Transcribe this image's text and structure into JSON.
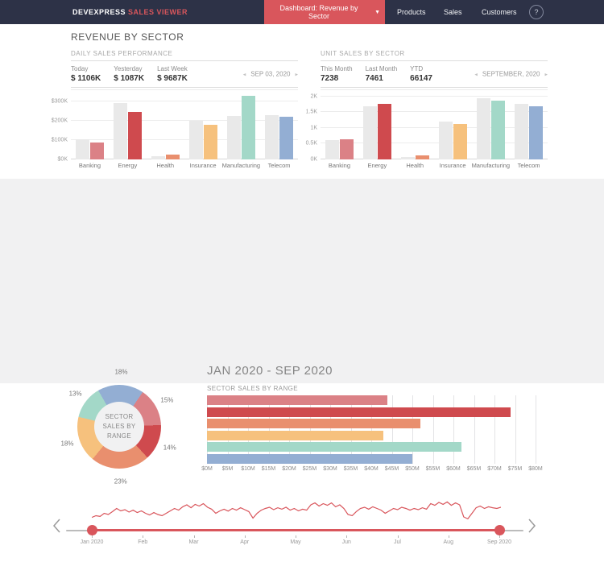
{
  "nav": {
    "brand_primary": "DEVEXPRESS",
    "brand_secondary": "SALES VIEWER",
    "dashboard_button": "Dashboard: Revenue by Sector",
    "items": [
      {
        "label": "Products"
      },
      {
        "label": "Sales"
      },
      {
        "label": "Customers"
      }
    ],
    "help_label": "?"
  },
  "page_title": "REVENUE BY SECTOR",
  "palette": {
    "nav_bg": "#2d3247",
    "accent_red": "#d9565c",
    "section_bg": "#f1f1f2",
    "compare_bar": "#e9e9e9",
    "sectors": {
      "banking": "#db8186",
      "energy": "#cf4a4e",
      "health": "#e98f6e",
      "insurance": "#f6c17d",
      "manufacturing": "#a3d8c8",
      "telecom": "#93aed3"
    }
  },
  "panels": {
    "daily": {
      "title": "DAILY SALES PERFORMANCE",
      "stats": [
        {
          "label": "Today",
          "value": "$ 1106K"
        },
        {
          "label": "Yesterday",
          "value": "$ 1087K"
        },
        {
          "label": "Last Week",
          "value": "$ 9687K"
        }
      ],
      "date_nav": {
        "prev": "◂",
        "label": "SEP 03, 2020",
        "next": "▸"
      }
    },
    "unit": {
      "title": "UNIT SALES BY SECTOR",
      "stats": [
        {
          "label": "This Month",
          "value": "7238"
        },
        {
          "label": "Last Month",
          "value": "7461"
        },
        {
          "label": "YTD",
          "value": "66147"
        }
      ],
      "date_nav": {
        "prev": "◂",
        "label": "SEPTEMBER, 2020",
        "next": "▸"
      }
    }
  },
  "summary": {
    "title": "JAN 2020 - SEP 2020",
    "hbar_title": "SECTOR SALES BY RANGE"
  },
  "chart_data": [
    {
      "id": "daily-sales",
      "type": "bar",
      "title": "DAILY SALES PERFORMANCE",
      "categories": [
        "Banking",
        "Energy",
        "Health",
        "Insurance",
        "Manufacturing",
        "Telecom"
      ],
      "series": [
        {
          "name": "Previous",
          "values": [
            105,
            295,
            15,
            200,
            225,
            230
          ],
          "color": "#e9e9e9"
        },
        {
          "name": "Current",
          "values": [
            90,
            245,
            25,
            180,
            330,
            222
          ],
          "colors": [
            "#db8186",
            "#cf4a4e",
            "#e98f6e",
            "#f6c17d",
            "#a3d8c8",
            "#93aed3"
          ]
        }
      ],
      "y_ticks": [
        {
          "label": "$0K",
          "value": 0
        },
        {
          "label": "$100K",
          "value": 100
        },
        {
          "label": "$200K",
          "value": 200
        },
        {
          "label": "$300K",
          "value": 300
        }
      ],
      "ylim": [
        0,
        360
      ],
      "grid": "horizontal"
    },
    {
      "id": "unit-sales",
      "type": "bar",
      "title": "UNIT SALES BY SECTOR",
      "categories": [
        "Banking",
        "Energy",
        "Health",
        "Insurance",
        "Manufacturing",
        "Telecom"
      ],
      "series": [
        {
          "name": "Previous",
          "values": [
            0.62,
            1.7,
            0.08,
            1.2,
            1.95,
            1.77
          ],
          "color": "#e9e9e9"
        },
        {
          "name": "Current",
          "values": [
            0.64,
            1.76,
            0.12,
            1.13,
            1.86,
            1.68
          ],
          "colors": [
            "#db8186",
            "#cf4a4e",
            "#e98f6e",
            "#f6c17d",
            "#a3d8c8",
            "#93aed3"
          ]
        }
      ],
      "y_ticks": [
        {
          "label": "0K",
          "value": 0
        },
        {
          "label": "0.5K",
          "value": 0.5
        },
        {
          "label": "1K",
          "value": 1
        },
        {
          "label": "1.5K",
          "value": 1.5
        },
        {
          "label": "2K",
          "value": 2
        }
      ],
      "ylim": [
        0,
        2.2
      ],
      "grid": "horizontal"
    },
    {
      "id": "sector-share",
      "type": "pie",
      "title": "SECTOR SALES BY RANGE",
      "center_label": "SECTOR SALES BY RANGE",
      "start_angle": -30,
      "slices": [
        {
          "label": "18%",
          "value": 18,
          "color": "#93aed3"
        },
        {
          "label": "15%",
          "value": 15,
          "color": "#db8186"
        },
        {
          "label": "14%",
          "value": 14,
          "color": "#cf4a4e"
        },
        {
          "label": "23%",
          "value": 23,
          "color": "#e98f6e"
        },
        {
          "label": "18%",
          "value": 18,
          "color": "#f6c17d"
        },
        {
          "label": "13%",
          "value": 13,
          "color": "#a3d8c8"
        }
      ]
    },
    {
      "id": "sector-range",
      "type": "bar-horizontal",
      "title": "SECTOR SALES BY RANGE",
      "values": [
        44,
        74,
        52,
        43,
        62,
        50
      ],
      "colors": [
        "#db8186",
        "#cf4a4e",
        "#e98f6e",
        "#f6c17d",
        "#a3d8c8",
        "#93aed3"
      ],
      "x_ticks": [
        "$0M",
        "$5M",
        "$10M",
        "$15M",
        "$20M",
        "$25M",
        "$30M",
        "$35M",
        "$40M",
        "$45M",
        "$50M",
        "$55M",
        "$60M",
        "$65M",
        "$70M",
        "$75M",
        "$80M"
      ],
      "xlim": [
        0,
        80
      ],
      "grid": "vertical"
    },
    {
      "id": "timeline",
      "type": "line",
      "range_start": "Jan 2020",
      "range_end": "Sep 2020",
      "months": [
        "Jan 2020",
        "Feb",
        "Mar",
        "Apr",
        "May",
        "Jun",
        "Jul",
        "Aug",
        "Sep 2020"
      ],
      "values_normalized": [
        0.18,
        0.25,
        0.22,
        0.35,
        0.3,
        0.42,
        0.55,
        0.45,
        0.5,
        0.4,
        0.48,
        0.38,
        0.45,
        0.35,
        0.28,
        0.38,
        0.3,
        0.25,
        0.35,
        0.45,
        0.55,
        0.48,
        0.62,
        0.7,
        0.58,
        0.72,
        0.65,
        0.75,
        0.6,
        0.52,
        0.35,
        0.45,
        0.52,
        0.44,
        0.55,
        0.48,
        0.58,
        0.5,
        0.42,
        0.15,
        0.35,
        0.48,
        0.55,
        0.6,
        0.5,
        0.58,
        0.52,
        0.6,
        0.48,
        0.55,
        0.45,
        0.52,
        0.48,
        0.7,
        0.78,
        0.65,
        0.75,
        0.68,
        0.78,
        0.62,
        0.7,
        0.55,
        0.3,
        0.25,
        0.42,
        0.55,
        0.6,
        0.52,
        0.62,
        0.55,
        0.48,
        0.35,
        0.45,
        0.55,
        0.5,
        0.6,
        0.55,
        0.48,
        0.55,
        0.5,
        0.58,
        0.52,
        0.75,
        0.68,
        0.8,
        0.72,
        0.82,
        0.68,
        0.78,
        0.7,
        0.2,
        0.12,
        0.35,
        0.58,
        0.65,
        0.55,
        0.62,
        0.58,
        0.55,
        0.6
      ]
    }
  ]
}
